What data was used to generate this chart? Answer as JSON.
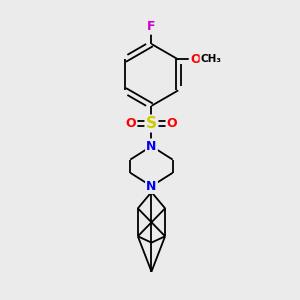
{
  "bg_color": "#ebebeb",
  "atom_colors": {
    "C": "#000000",
    "N": "#0000ee",
    "S": "#cccc00",
    "O": "#ff0000",
    "F": "#cc00cc",
    "H": "#000000"
  },
  "bond_color": "#000000"
}
